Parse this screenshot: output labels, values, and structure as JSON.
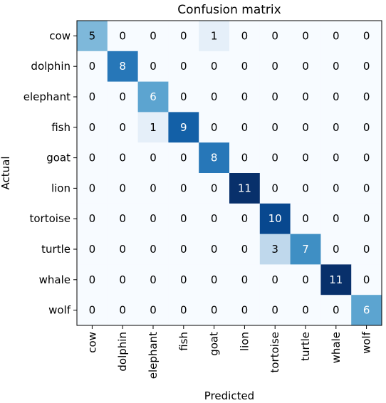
{
  "chart_data": {
    "type": "heatmap",
    "title": "Confusion matrix",
    "xlabel": "Predicted",
    "ylabel": "Actual",
    "x_categories": [
      "cow",
      "dolphin",
      "elephant",
      "fish",
      "goat",
      "lion",
      "tortoise",
      "turtle",
      "whale",
      "wolf"
    ],
    "y_categories": [
      "cow",
      "dolphin",
      "elephant",
      "fish",
      "goat",
      "lion",
      "tortoise",
      "turtle",
      "whale",
      "wolf"
    ],
    "values": [
      [
        5,
        0,
        0,
        0,
        1,
        0,
        0,
        0,
        0,
        0
      ],
      [
        0,
        8,
        0,
        0,
        0,
        0,
        0,
        0,
        0,
        0
      ],
      [
        0,
        0,
        6,
        0,
        0,
        0,
        0,
        0,
        0,
        0
      ],
      [
        0,
        0,
        1,
        9,
        0,
        0,
        0,
        0,
        0,
        0
      ],
      [
        0,
        0,
        0,
        0,
        8,
        0,
        0,
        0,
        0,
        0
      ],
      [
        0,
        0,
        0,
        0,
        0,
        11,
        0,
        0,
        0,
        0
      ],
      [
        0,
        0,
        0,
        0,
        0,
        0,
        10,
        0,
        0,
        0
      ],
      [
        0,
        0,
        0,
        0,
        0,
        0,
        3,
        7,
        0,
        0
      ],
      [
        0,
        0,
        0,
        0,
        0,
        0,
        0,
        0,
        11,
        0
      ],
      [
        0,
        0,
        0,
        0,
        0,
        0,
        0,
        0,
        0,
        6
      ]
    ],
    "colormap": "Blues",
    "value_range": [
      0,
      11
    ],
    "grid": false,
    "legend": "none"
  }
}
